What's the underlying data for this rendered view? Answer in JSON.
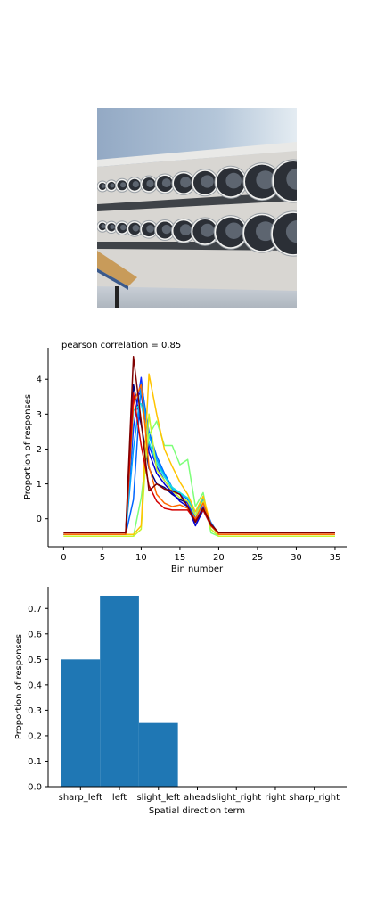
{
  "image": {
    "subject": "laundromat-photo"
  },
  "colors": {
    "bar": "#1f77b4",
    "axis": "#000000",
    "series": [
      "#00007f",
      "#0000d4",
      "#0f2bff",
      "#0066ff",
      "#00a0ff",
      "#16e0e0",
      "#7dff79",
      "#c4f52f",
      "#ffc400",
      "#ff6a00",
      "#d40000",
      "#7f0000"
    ]
  },
  "chart_data": [
    {
      "type": "line",
      "title": "pearson correlation = 0.85",
      "xlabel": "Bin number",
      "ylabel": "Proportion of responses",
      "xlim": [
        -2,
        36.5
      ],
      "ylim": [
        -0.8,
        4.9
      ],
      "xticks": [
        "0",
        "5",
        "10",
        "15",
        "20",
        "25",
        "30",
        "35"
      ],
      "yticks": [
        "0",
        "1",
        "2",
        "3",
        "4"
      ],
      "grid": false,
      "x": [
        0,
        1,
        2,
        3,
        4,
        5,
        6,
        7,
        8,
        9,
        10,
        11,
        12,
        13,
        14,
        15,
        16,
        17,
        18,
        19,
        20,
        21,
        22,
        23,
        24,
        25,
        26,
        27,
        28,
        29,
        30,
        31,
        32,
        33,
        34,
        35
      ],
      "series": [
        {
          "values": [
            -0.45,
            -0.45,
            -0.45,
            -0.45,
            -0.45,
            -0.45,
            -0.45,
            -0.45,
            -0.45,
            3.85,
            2.7,
            1.45,
            1.0,
            0.9,
            0.7,
            0.55,
            0.45,
            -0.1,
            0.3,
            -0.15,
            -0.45,
            -0.45,
            -0.45,
            -0.45,
            -0.45,
            -0.45,
            -0.45,
            -0.45,
            -0.45,
            -0.45,
            -0.45,
            -0.45,
            -0.45,
            -0.45,
            -0.45,
            -0.45
          ]
        },
        {
          "values": [
            -0.45,
            -0.45,
            -0.45,
            -0.45,
            -0.45,
            -0.45,
            -0.45,
            -0.45,
            -0.45,
            3.5,
            3.6,
            1.9,
            1.3,
            1.0,
            0.75,
            0.5,
            0.35,
            -0.2,
            0.25,
            -0.2,
            -0.45,
            -0.45,
            -0.45,
            -0.45,
            -0.45,
            -0.45,
            -0.45,
            -0.45,
            -0.45,
            -0.45,
            -0.45,
            -0.45,
            -0.45,
            -0.45,
            -0.45,
            -0.45
          ]
        },
        {
          "values": [
            -0.45,
            -0.45,
            -0.45,
            -0.45,
            -0.45,
            -0.45,
            -0.45,
            -0.45,
            -0.45,
            2.6,
            4.05,
            2.1,
            1.5,
            1.1,
            0.8,
            0.7,
            0.45,
            -0.1,
            0.35,
            -0.15,
            -0.45,
            -0.45,
            -0.45,
            -0.45,
            -0.45,
            -0.45,
            -0.45,
            -0.45,
            -0.45,
            -0.45,
            -0.45,
            -0.45,
            -0.45,
            -0.45,
            -0.45,
            -0.45
          ]
        },
        {
          "values": [
            -0.45,
            -0.45,
            -0.45,
            -0.45,
            -0.45,
            -0.45,
            -0.45,
            -0.45,
            -0.45,
            0.55,
            3.9,
            2.5,
            1.8,
            1.3,
            0.9,
            0.75,
            0.55,
            0.0,
            0.45,
            -0.1,
            -0.45,
            -0.45,
            -0.45,
            -0.45,
            -0.45,
            -0.45,
            -0.45,
            -0.45,
            -0.45,
            -0.45,
            -0.45,
            -0.45,
            -0.45,
            -0.45,
            -0.45,
            -0.45
          ]
        },
        {
          "values": [
            -0.45,
            -0.45,
            -0.45,
            -0.45,
            -0.45,
            -0.45,
            -0.45,
            -0.45,
            -0.45,
            2.0,
            3.7,
            2.4,
            1.7,
            1.25,
            0.85,
            0.7,
            0.6,
            0.1,
            0.55,
            -0.15,
            -0.45,
            -0.45,
            -0.45,
            -0.45,
            -0.45,
            -0.45,
            -0.45,
            -0.45,
            -0.45,
            -0.45,
            -0.45,
            -0.45,
            -0.45,
            -0.45,
            -0.45,
            -0.45
          ]
        },
        {
          "values": [
            -0.45,
            -0.45,
            -0.45,
            -0.45,
            -0.45,
            -0.45,
            -0.45,
            -0.45,
            -0.45,
            3.1,
            3.3,
            2.2,
            1.6,
            1.2,
            0.9,
            0.75,
            0.6,
            0.2,
            0.6,
            -0.2,
            -0.45,
            -0.45,
            -0.45,
            -0.45,
            -0.45,
            -0.45,
            -0.45,
            -0.45,
            -0.45,
            -0.45,
            -0.45,
            -0.45,
            -0.45,
            -0.45,
            -0.45,
            -0.45
          ]
        },
        {
          "values": [
            -0.5,
            -0.5,
            -0.5,
            -0.5,
            -0.5,
            -0.5,
            -0.5,
            -0.5,
            -0.5,
            -0.5,
            0.6,
            2.4,
            2.8,
            2.1,
            2.1,
            1.55,
            1.7,
            0.35,
            0.75,
            -0.4,
            -0.5,
            -0.5,
            -0.5,
            -0.5,
            -0.5,
            -0.5,
            -0.5,
            -0.5,
            -0.5,
            -0.5,
            -0.5,
            -0.5,
            -0.5,
            -0.5,
            -0.5,
            -0.5
          ]
        },
        {
          "values": [
            -0.5,
            -0.5,
            -0.5,
            -0.5,
            -0.5,
            -0.5,
            -0.5,
            -0.5,
            -0.5,
            -0.5,
            -0.3,
            3.0,
            1.4,
            1.1,
            0.8,
            0.6,
            0.5,
            0.1,
            0.5,
            -0.3,
            -0.5,
            -0.5,
            -0.5,
            -0.5,
            -0.5,
            -0.5,
            -0.5,
            -0.5,
            -0.5,
            -0.5,
            -0.5,
            -0.5,
            -0.5,
            -0.5,
            -0.5,
            -0.5
          ]
        },
        {
          "values": [
            -0.45,
            -0.45,
            -0.45,
            -0.45,
            -0.45,
            -0.45,
            -0.45,
            -0.45,
            -0.45,
            -0.45,
            -0.2,
            4.15,
            3.0,
            2.0,
            1.5,
            1.05,
            0.7,
            0.2,
            0.65,
            -0.2,
            -0.45,
            -0.45,
            -0.45,
            -0.45,
            -0.45,
            -0.45,
            -0.45,
            -0.45,
            -0.45,
            -0.45,
            -0.45,
            -0.45,
            -0.45,
            -0.45,
            -0.45,
            -0.45
          ]
        },
        {
          "values": [
            -0.45,
            -0.45,
            -0.45,
            -0.45,
            -0.45,
            -0.45,
            -0.45,
            -0.45,
            -0.45,
            3.3,
            3.85,
            1.5,
            0.7,
            0.45,
            0.35,
            0.4,
            0.3,
            0.0,
            0.45,
            -0.15,
            -0.45,
            -0.45,
            -0.45,
            -0.45,
            -0.45,
            -0.45,
            -0.45,
            -0.45,
            -0.45,
            -0.45,
            -0.45,
            -0.45,
            -0.45,
            -0.45,
            -0.45,
            -0.45
          ]
        },
        {
          "values": [
            -0.4,
            -0.4,
            -0.4,
            -0.4,
            -0.4,
            -0.4,
            -0.4,
            -0.4,
            -0.4,
            3.6,
            2.1,
            0.95,
            0.5,
            0.3,
            0.25,
            0.25,
            0.25,
            -0.05,
            0.25,
            -0.2,
            -0.4,
            -0.4,
            -0.4,
            -0.4,
            -0.4,
            -0.4,
            -0.4,
            -0.4,
            -0.4,
            -0.4,
            -0.4,
            -0.4,
            -0.4,
            -0.4,
            -0.4,
            -0.4
          ]
        },
        {
          "values": [
            -0.4,
            -0.4,
            -0.4,
            -0.4,
            -0.4,
            -0.4,
            -0.4,
            -0.4,
            -0.4,
            4.65,
            2.8,
            0.8,
            1.0,
            0.85,
            0.8,
            0.7,
            0.35,
            -0.1,
            0.3,
            -0.15,
            -0.4,
            -0.4,
            -0.4,
            -0.4,
            -0.4,
            -0.4,
            -0.4,
            -0.4,
            -0.4,
            -0.4,
            -0.4,
            -0.4,
            -0.4,
            -0.4,
            -0.4,
            -0.4
          ]
        }
      ]
    },
    {
      "type": "bar",
      "title": "",
      "xlabel": "Spatial direction term",
      "ylabel": "Proportion of responses",
      "categories": [
        "sharp_left",
        "left",
        "slight_left",
        "ahead",
        "slight_right",
        "right",
        "sharp_right"
      ],
      "values": [
        0.5,
        0.75,
        0.25,
        0.0,
        0.0,
        0.0,
        0.0
      ],
      "ylim": [
        0,
        0.785
      ],
      "yticks": [
        "0.0",
        "0.1",
        "0.2",
        "0.3",
        "0.4",
        "0.5",
        "0.6",
        "0.7"
      ],
      "grid": false
    }
  ]
}
